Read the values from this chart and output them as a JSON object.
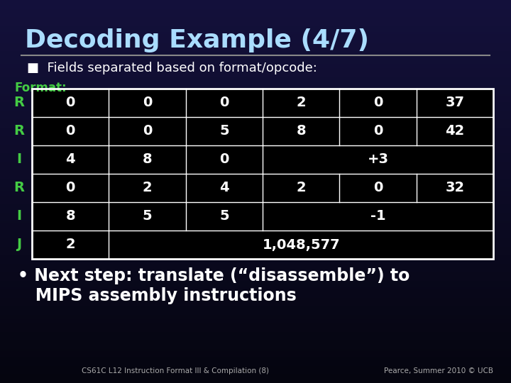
{
  "title": "Decoding Example (4/7)",
  "title_color": "#aaddff",
  "background_color": "#0a0a1a",
  "bullet_text": "■  Fields separated based on format/opcode:",
  "bullet_color": "#ffffff",
  "format_label": "Format:",
  "format_label_color": "#44cc44",
  "row_labels": [
    "R",
    "R",
    "I",
    "R",
    "I",
    "J"
  ],
  "row_label_color": "#44cc44",
  "cell_text_color": "#ffffff",
  "cell_bg_color": "#000000",
  "rows": [
    [
      "0",
      "0",
      "0",
      "2",
      "0",
      "37"
    ],
    [
      "0",
      "0",
      "5",
      "8",
      "0",
      "42"
    ],
    [
      "4",
      "8",
      "0",
      "+3",
      null,
      null
    ],
    [
      "0",
      "2",
      "4",
      "2",
      "0",
      "32"
    ],
    [
      "8",
      "5",
      "5",
      "-1",
      null,
      null
    ],
    [
      "2",
      "1,048,577",
      null,
      null,
      null,
      null
    ]
  ],
  "merged_rows": {
    "2": 3,
    "4": 3,
    "5": 1
  },
  "footer_left_gray": "CS61C L12 Instruction Format III & Compilation (8)",
  "footer_left_orange": "",
  "footer_right": "Pearce, Summer 2010 © UCB",
  "footer_color": "#aaaaaa",
  "bullet2_line1": "• Next step: translate (“disassemble”) to",
  "bullet2_line2": "   MIPS assembly instructions",
  "bullet2_color": "#ffffff"
}
